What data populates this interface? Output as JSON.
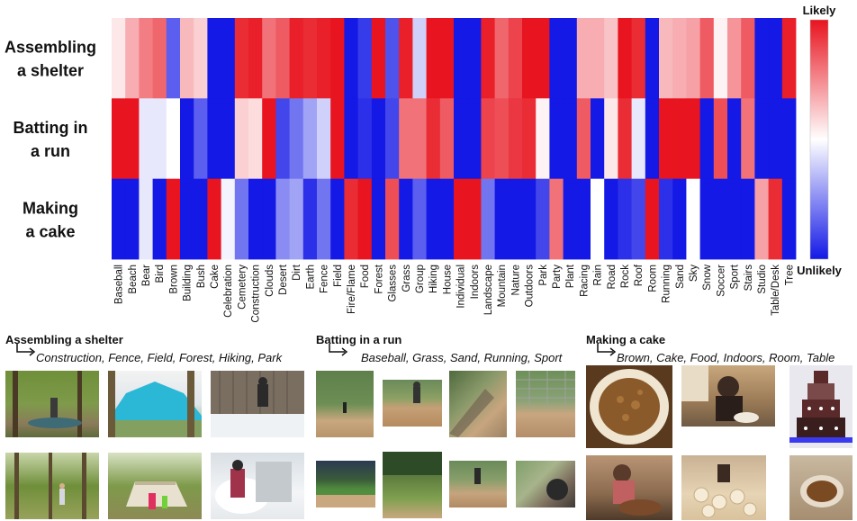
{
  "chart_data": {
    "type": "heatmap",
    "rows": [
      "Assembling a shelter",
      "Batting in a run",
      "Making a cake"
    ],
    "row_label_lines": [
      [
        "Assembling",
        "a shelter"
      ],
      [
        "Batting in",
        "a run"
      ],
      [
        "Making",
        "a cake"
      ]
    ],
    "columns": [
      "Baseball",
      "Beach",
      "Bear",
      "Bird",
      "Brown",
      "Building",
      "Bush",
      "Cake",
      "Celebration",
      "Cemetery",
      "Construction",
      "Clouds",
      "Desert",
      "Dirt",
      "Earth",
      "Fence",
      "Field",
      "Fire/Flame",
      "Food",
      "Forest",
      "Glasses",
      "Grass",
      "Group",
      "Hiking",
      "House",
      "Individual",
      "Indoors",
      "Landscape",
      "Mountain",
      "Nature",
      "Outdoors",
      "Park",
      "Party",
      "Plant",
      "Racing",
      "Rain",
      "Road",
      "Rock",
      "Roof",
      "Room",
      "Running",
      "Sand",
      "Sky",
      "Snow",
      "Soccer",
      "Sport",
      "Stairs",
      "Studio",
      "Table/Desk",
      "Tree"
    ],
    "values": [
      [
        0.1,
        0.35,
        0.55,
        0.65,
        -0.7,
        0.3,
        0.2,
        -1,
        -1,
        0.9,
        0.95,
        0.6,
        0.7,
        0.95,
        0.9,
        0.95,
        1,
        -1,
        -0.85,
        1,
        -0.75,
        0.95,
        -0.2,
        1,
        1,
        -1,
        -1,
        0.95,
        0.65,
        0.8,
        1,
        1,
        -1,
        -1,
        0.35,
        0.35,
        0.25,
        1,
        0.9,
        -1,
        0.3,
        0.35,
        0.4,
        0.7,
        0.05,
        0.45,
        0.7,
        -1,
        -1,
        0.95
      ],
      [
        1,
        1,
        -0.1,
        -0.1,
        0.0,
        -1,
        -0.7,
        -1,
        -1,
        0.2,
        0.15,
        1,
        -0.8,
        -0.6,
        -0.4,
        -0.2,
        1,
        -1,
        -0.9,
        -1,
        -0.8,
        0.6,
        0.6,
        0.9,
        0.7,
        -1,
        -1,
        0.8,
        0.75,
        0.85,
        0.9,
        0.05,
        -1,
        -1,
        0.7,
        -1,
        0.1,
        0.9,
        -0.1,
        -1,
        1,
        1,
        1,
        -1,
        0.75,
        -1,
        0.6,
        -1,
        -1,
        -1
      ],
      [
        -1,
        -1,
        -0.1,
        -1,
        1,
        -1,
        -1,
        1,
        -0.05,
        -0.6,
        -1,
        -1,
        -0.5,
        -0.4,
        -0.9,
        -0.6,
        -1,
        0.9,
        1,
        -1,
        0.75,
        -1,
        -0.7,
        -1,
        -1,
        1,
        1,
        -0.6,
        -1,
        -1,
        -1,
        -0.8,
        0.6,
        -1,
        -1,
        0.0,
        -1,
        -0.9,
        -0.8,
        1,
        -0.9,
        -1,
        0.0,
        -1,
        -1,
        -1,
        -1,
        0.4,
        0.9,
        -1
      ]
    ],
    "colorbar": {
      "top_label": "Likely",
      "bottom_label": "Unlikely",
      "min": -1,
      "max": 1
    },
    "colors": {
      "likely": "#e8141f",
      "neutral": "#ffffff",
      "unlikely": "#1419e6"
    }
  },
  "panels": [
    {
      "title": "Assembling a shelter",
      "keywords": "Construction, Fence, Field, Forest, Hiking, Park"
    },
    {
      "title": "Batting in a run",
      "keywords": "Baseball, Grass, Sand, Running, Sport"
    },
    {
      "title": "Making a cake",
      "keywords": "Brown, Cake, Food, Indoors, Room, Table"
    }
  ]
}
